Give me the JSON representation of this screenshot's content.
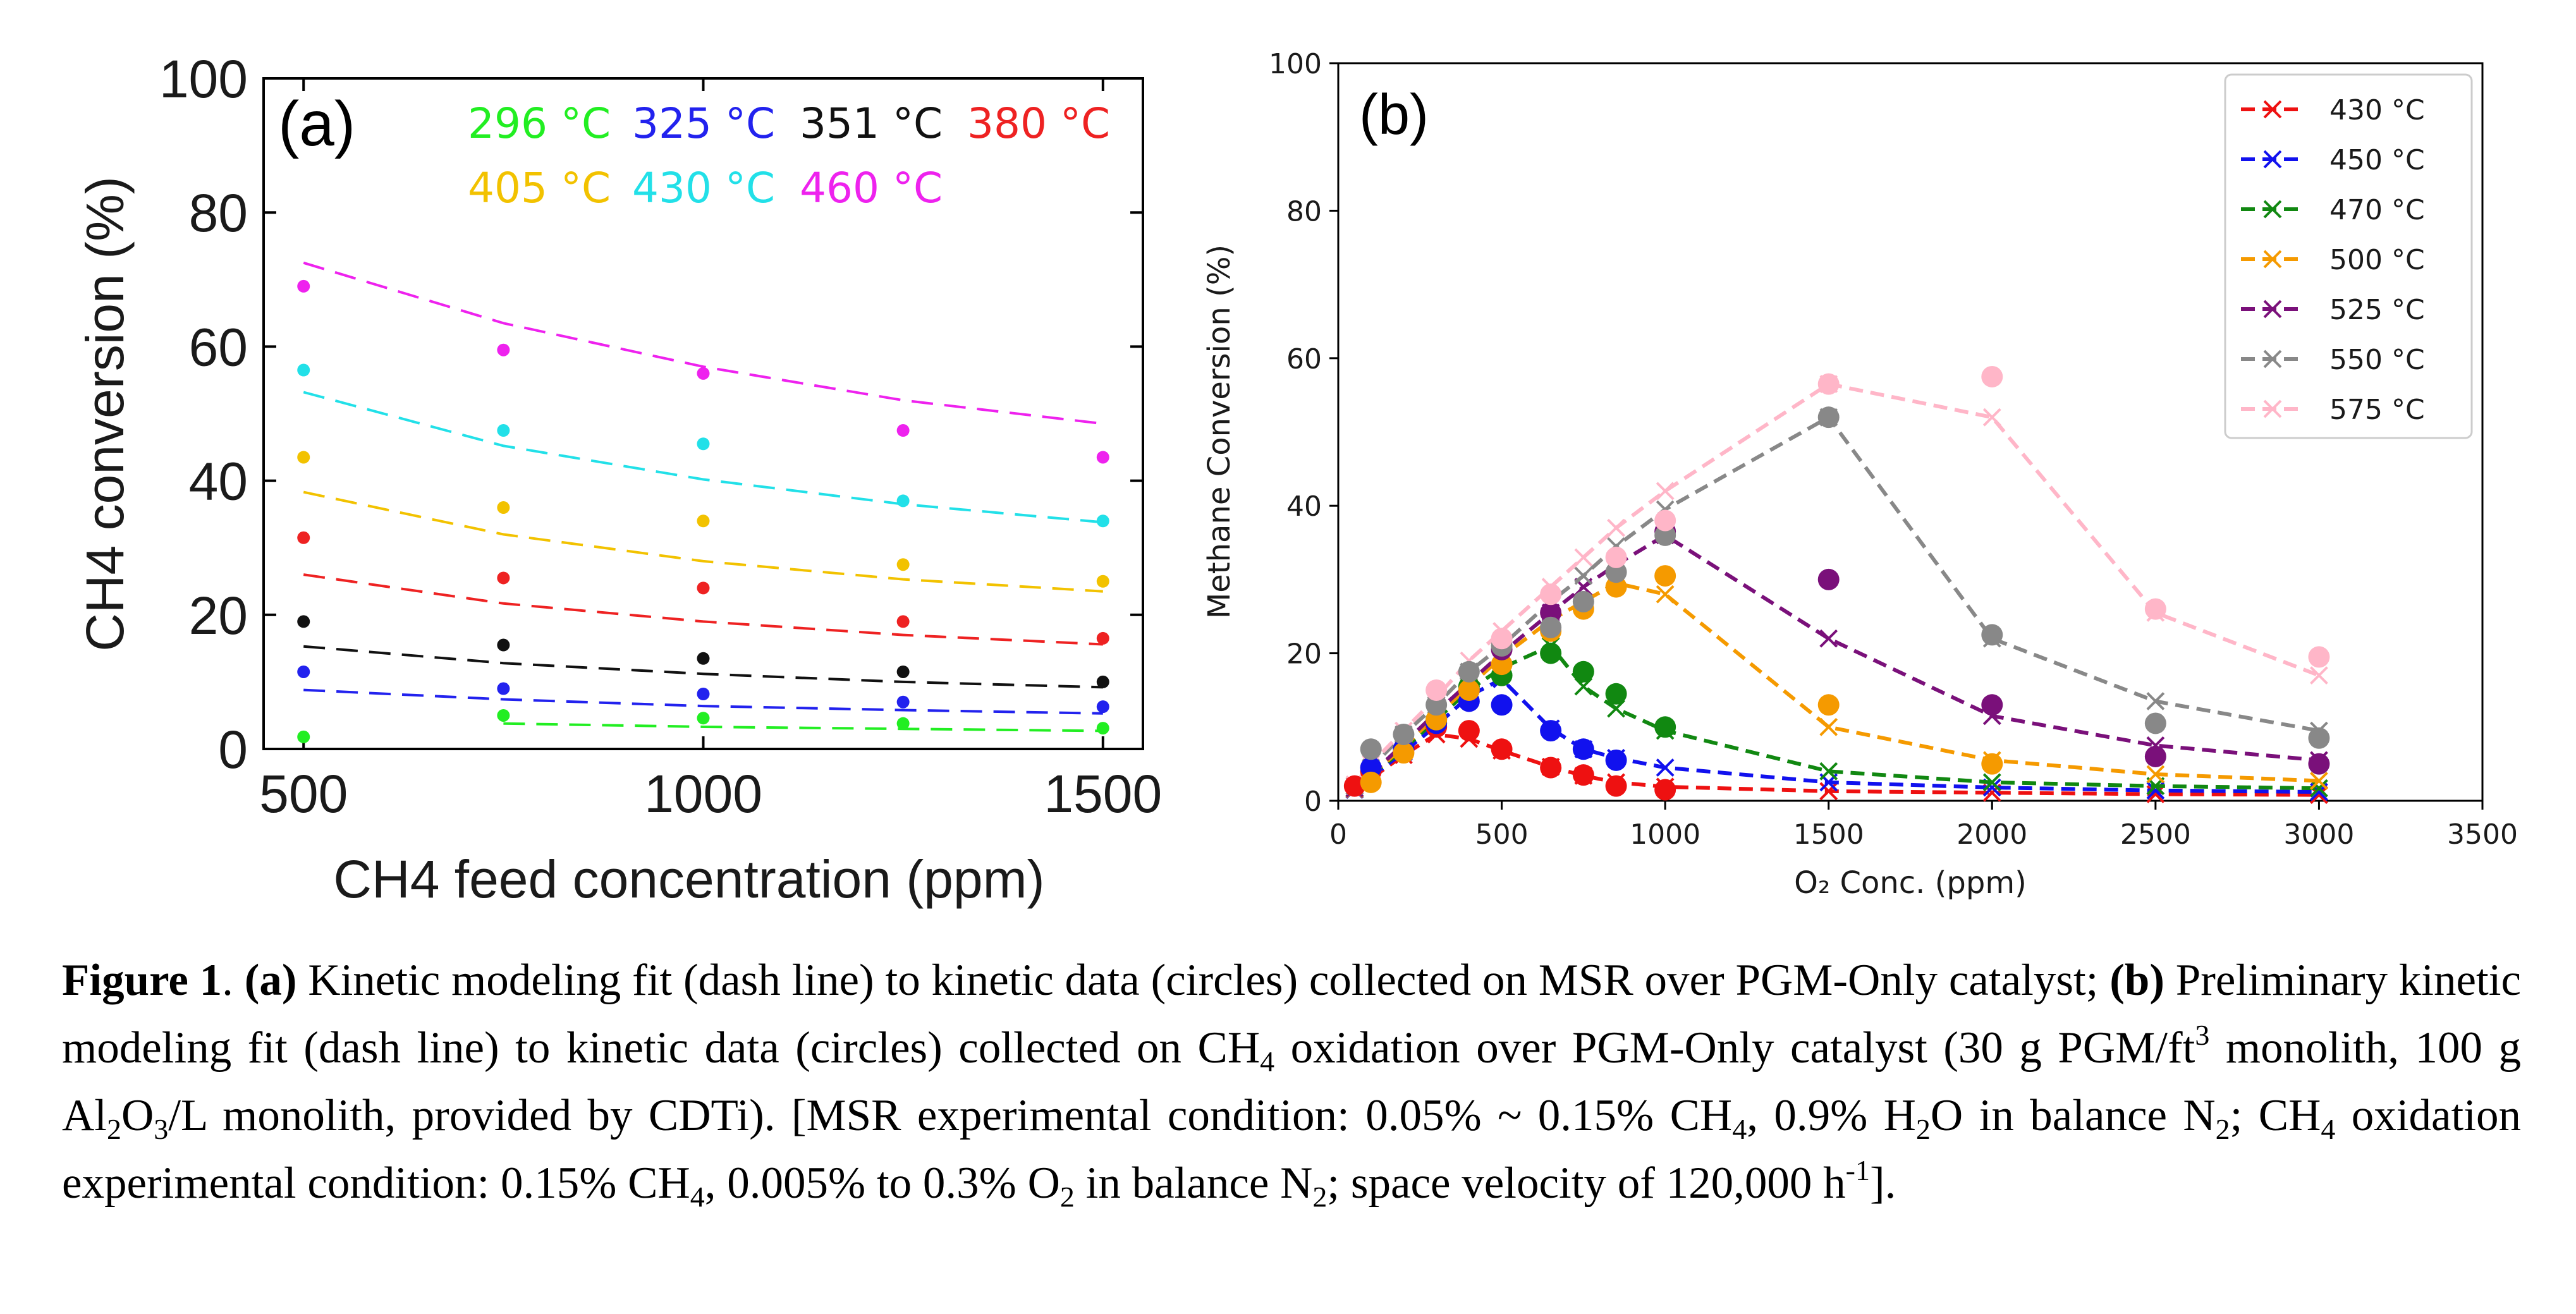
{
  "chart_data": [
    {
      "type": "scatter",
      "panel_label": "(a)",
      "xlabel": "CH4 feed concentration (ppm)",
      "ylabel": "CH4 conversion (%)",
      "xlim": [
        450,
        1550
      ],
      "ylim": [
        0,
        100
      ],
      "xticks": [
        500,
        1000,
        1500
      ],
      "yticks": [
        0,
        20,
        40,
        60,
        80,
        100
      ],
      "grid": false,
      "legend_position": "top, inside plot as colored text",
      "series": [
        {
          "name": "296 °C",
          "color": "#22ee22",
          "data_x": [
            500,
            750,
            1000,
            1250,
            1500
          ],
          "data_y": [
            1.8,
            5.0,
            4.6,
            3.8,
            3.1
          ],
          "fit_x": [
            750,
            1000,
            1250,
            1500
          ],
          "fit_y": [
            3.8,
            3.3,
            3.0,
            2.7
          ]
        },
        {
          "name": "325 °C",
          "color": "#2222ee",
          "data_x": [
            500,
            750,
            1000,
            1250,
            1500
          ],
          "data_y": [
            11.5,
            9.0,
            8.2,
            7.0,
            6.3
          ],
          "fit_x": [
            500,
            750,
            1000,
            1250,
            1500
          ],
          "fit_y": [
            8.8,
            7.4,
            6.4,
            5.8,
            5.3
          ]
        },
        {
          "name": "351 °C",
          "color": "#111111",
          "data_x": [
            500,
            750,
            1000,
            1250,
            1500
          ],
          "data_y": [
            19.0,
            15.5,
            13.5,
            11.5,
            10.0
          ],
          "fit_x": [
            500,
            750,
            1000,
            1250,
            1500
          ],
          "fit_y": [
            15.3,
            12.8,
            11.2,
            10.0,
            9.2
          ]
        },
        {
          "name": "380 °C",
          "color": "#ee2222",
          "data_x": [
            500,
            750,
            1000,
            1250,
            1500
          ],
          "data_y": [
            31.5,
            25.5,
            24.0,
            19.0,
            16.5
          ],
          "fit_x": [
            500,
            750,
            1000,
            1250,
            1500
          ],
          "fit_y": [
            26.0,
            21.7,
            19.0,
            17.0,
            15.6
          ]
        },
        {
          "name": "405 °C",
          "color": "#f2c200",
          "data_x": [
            500,
            750,
            1000,
            1250,
            1500
          ],
          "data_y": [
            43.5,
            36.0,
            34.0,
            27.5,
            25.0
          ],
          "fit_x": [
            500,
            750,
            1000,
            1250,
            1500
          ],
          "fit_y": [
            38.3,
            32.0,
            28.0,
            25.3,
            23.5
          ]
        },
        {
          "name": "430 °C",
          "color": "#22e0e8",
          "data_x": [
            500,
            750,
            1000,
            1250,
            1500
          ],
          "data_y": [
            56.5,
            47.5,
            45.5,
            37.0,
            34.0
          ],
          "fit_x": [
            500,
            750,
            1000,
            1250,
            1500
          ],
          "fit_y": [
            53.2,
            45.2,
            40.2,
            36.5,
            33.8
          ]
        },
        {
          "name": "460 °C",
          "color": "#ee22ee",
          "data_x": [
            500,
            750,
            1000,
            1250,
            1500
          ],
          "data_y": [
            69.0,
            59.5,
            56.0,
            47.5,
            43.5
          ],
          "fit_x": [
            500,
            750,
            1000,
            1250,
            1500
          ],
          "fit_y": [
            72.5,
            63.5,
            57.0,
            52.0,
            48.5
          ]
        }
      ]
    },
    {
      "type": "scatter",
      "panel_label": "(b)",
      "xlabel": "O₂ Conc. (ppm)",
      "ylabel": "Methane Conversion (%)",
      "xlim": [
        0,
        3500
      ],
      "ylim": [
        0,
        100
      ],
      "xticks": [
        0,
        500,
        1000,
        1500,
        2000,
        2500,
        3000,
        3500
      ],
      "yticks": [
        0,
        20,
        40,
        60,
        80,
        100
      ],
      "grid": false,
      "legend_position": "top-right",
      "series": [
        {
          "name": "430 °C",
          "color": "#ee1111",
          "fit_x": [
            50,
            100,
            200,
            300,
            400,
            500,
            650,
            750,
            850,
            1000,
            1500,
            2000,
            2500,
            3000
          ],
          "fit_y": [
            1.5,
            3.0,
            6.2,
            9.0,
            8.4,
            6.8,
            4.6,
            3.4,
            2.5,
            1.9,
            1.3,
            1.1,
            0.9,
            0.8
          ],
          "data_x": [
            50,
            100,
            200,
            300,
            400,
            500,
            650,
            750,
            850,
            1000
          ],
          "data_y": [
            2.0,
            4.0,
            7.0,
            10.0,
            9.5,
            7.0,
            4.5,
            3.5,
            2.0,
            1.5
          ]
        },
        {
          "name": "450 °C",
          "color": "#1111ee",
          "fit_x": [
            50,
            100,
            200,
            300,
            400,
            500,
            650,
            750,
            850,
            1000,
            1500,
            2000,
            2500,
            3000
          ],
          "fit_y": [
            1.5,
            3.2,
            6.6,
            10.2,
            14.2,
            16.5,
            9.8,
            7.0,
            5.8,
            4.5,
            2.5,
            1.8,
            1.4,
            1.2
          ],
          "data_x": [
            100,
            200,
            300,
            400,
            500,
            650,
            750,
            850
          ],
          "data_y": [
            4.5,
            7.0,
            10.5,
            13.5,
            13.0,
            9.5,
            7.0,
            5.5
          ]
        },
        {
          "name": "470 °C",
          "color": "#118811",
          "fit_x": [
            50,
            100,
            200,
            300,
            400,
            500,
            650,
            750,
            850,
            1000,
            1500,
            2000,
            2500,
            3000
          ],
          "fit_y": [
            1.6,
            3.4,
            7.0,
            11.0,
            15.0,
            18.0,
            21.0,
            15.5,
            12.5,
            9.5,
            4.0,
            2.5,
            2.0,
            1.7
          ],
          "data_x": [
            300,
            400,
            500,
            650,
            750,
            850,
            1000
          ],
          "data_y": [
            11.0,
            15.5,
            17.0,
            20.0,
            17.5,
            14.5,
            10.0
          ]
        },
        {
          "name": "500 °C",
          "color": "#f59a00",
          "fit_x": [
            50,
            100,
            200,
            300,
            400,
            500,
            650,
            750,
            850,
            1000,
            1500,
            2000,
            2500,
            3000
          ],
          "fit_y": [
            1.6,
            3.5,
            7.3,
            11.5,
            15.5,
            19.5,
            24.5,
            27.0,
            29.5,
            28.0,
            10.0,
            5.5,
            3.6,
            2.7
          ],
          "data_x": [
            100,
            200,
            300,
            400,
            500,
            650,
            750,
            850,
            1000,
            1500,
            2000
          ],
          "data_y": [
            2.5,
            6.5,
            11.0,
            15.0,
            18.5,
            23.0,
            26.0,
            29.0,
            30.5,
            13.0,
            5.0
          ]
        },
        {
          "name": "525 °C",
          "color": "#7a107a",
          "fit_x": [
            50,
            100,
            200,
            300,
            400,
            500,
            650,
            750,
            850,
            1000,
            1500,
            2000,
            2500,
            3000
          ],
          "fit_y": [
            1.7,
            3.6,
            7.7,
            12.0,
            16.0,
            20.0,
            25.5,
            29.0,
            32.0,
            36.0,
            22.0,
            11.5,
            7.5,
            5.5
          ],
          "data_x": [
            500,
            650,
            1000,
            1500,
            2000,
            2500,
            3000
          ],
          "data_y": [
            20.5,
            25.5,
            36.5,
            30.0,
            13.0,
            6.0,
            5.0
          ]
        },
        {
          "name": "550 °C",
          "color": "#888888",
          "fit_x": [
            50,
            100,
            200,
            300,
            400,
            500,
            650,
            750,
            850,
            1000,
            1500,
            2000,
            2500,
            3000
          ],
          "fit_y": [
            2.0,
            4.5,
            9.0,
            13.0,
            17.5,
            21.0,
            27.0,
            30.5,
            34.5,
            39.5,
            52.0,
            22.0,
            13.5,
            9.5
          ],
          "data_x": [
            100,
            200,
            300,
            400,
            500,
            650,
            750,
            850,
            1000,
            1500,
            2000,
            2500,
            3000
          ],
          "data_y": [
            7.0,
            9.0,
            13.0,
            17.5,
            21.0,
            23.5,
            27.0,
            31.0,
            36.0,
            52.0,
            22.5,
            10.5,
            8.5
          ]
        },
        {
          "name": "575 °C",
          "color": "#ffb6c8",
          "fit_x": [
            50,
            100,
            200,
            300,
            400,
            500,
            650,
            750,
            850,
            1000,
            1500,
            2000,
            2500,
            3000
          ],
          "fit_y": [
            2.2,
            5.0,
            9.5,
            14.0,
            19.0,
            23.0,
            29.0,
            33.0,
            37.0,
            42.0,
            56.5,
            52.0,
            25.5,
            17.0
          ],
          "data_x": [
            300,
            500,
            650,
            850,
            1000,
            1500,
            2000,
            2500,
            3000
          ],
          "data_y": [
            15.0,
            22.0,
            28.0,
            33.0,
            38.0,
            56.5,
            57.5,
            26.0,
            19.5
          ]
        }
      ]
    }
  ],
  "caption": {
    "line1_label": "Figure 1",
    "line1_a": "(a)",
    "line1_text": " Kinetic modeling fit (dash line) to kinetic data (circles) collected on MSR over PGM-Only catalyst;",
    "line2_b": "(b)",
    "line2_text_1": " Preliminary kinetic modeling fit (dash line) to kinetic data (circles) collected on CH",
    "line2_sub_1": "4",
    "line2_text_2": " oxidation over PGM-Only",
    "line3_text_1": "catalyst (30 g PGM/ft",
    "line3_sup_1": "3",
    "line3_text_2": " monolith, 100 g Al",
    "line3_sub_1": "2",
    "line3_text_3": "O",
    "line3_sub_2": "3",
    "line3_text_4": "/L monolith, provided by CDTi). [MSR experimental condition:",
    "line4_text_1": "0.05% ~ 0.15% CH",
    "line4_sub_1": "4",
    "line4_text_2": ", 0.9% H",
    "line4_sub_2": "2",
    "line4_text_3": "O in balance N",
    "line4_sub_3": "2",
    "line4_text_4": "; CH",
    "line4_sub_4": "4",
    "line4_text_5": " oxidation experimental condition: 0.15% CH",
    "line4_sub_5": "4",
    "line4_text_6": ", 0.005% to 0.3%",
    "line5_text_1": "O",
    "line5_sub_1": "2",
    "line5_text_2": " in balance N",
    "line5_sub_2": "2",
    "line5_text_3": "; space velocity of 120,000 h",
    "line5_sup_1": "-1",
    "line5_text_4": "]."
  }
}
